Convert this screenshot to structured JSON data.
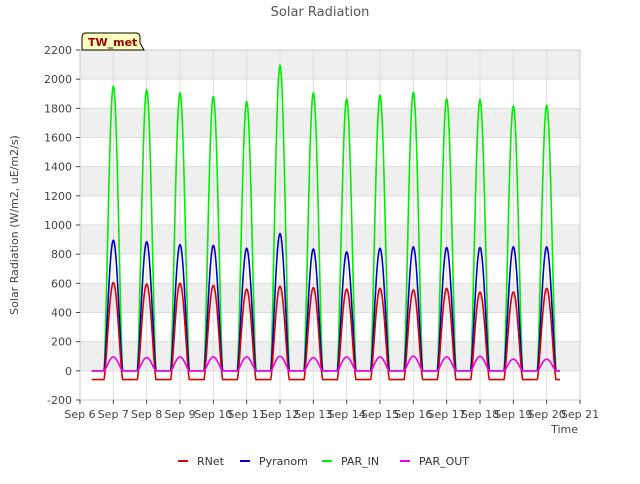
{
  "chart_data": {
    "type": "line",
    "title": "Solar Radiation",
    "xlabel": "Time",
    "ylabel": "Solar Radiation (W/m2, uE/m2/s)",
    "ylim": [
      -200,
      2200
    ],
    "yticks": [
      -200,
      0,
      200,
      400,
      600,
      800,
      1000,
      1200,
      1400,
      1600,
      1800,
      2000,
      2200
    ],
    "xlim": [
      6,
      21
    ],
    "xtick_values": [
      6,
      7,
      8,
      9,
      10,
      11,
      12,
      13,
      14,
      15,
      16,
      17,
      18,
      19,
      20,
      21
    ],
    "xtick_labels": [
      "Sep 6",
      "Sep 7",
      "Sep 8",
      "Sep 9",
      "Sep 10",
      "Sep 11",
      "Sep 12",
      "Sep 13",
      "Sep 14",
      "Sep 15",
      "Sep 16",
      "Sep 17",
      "Sep 18",
      "Sep 19",
      "Sep 20",
      "Sep 21"
    ],
    "grid": true,
    "legend_position": "bottom",
    "annotation": "TW_met",
    "days": [
      7,
      8,
      9,
      10,
      11,
      12,
      13,
      14,
      15,
      16,
      17,
      18,
      19,
      20
    ],
    "series": [
      {
        "name": "RNet",
        "color": "#dd0000",
        "night": -60,
        "peaks": [
          605,
          595,
          600,
          585,
          560,
          580,
          570,
          560,
          565,
          555,
          565,
          540,
          540,
          565
        ]
      },
      {
        "name": "Pyranom",
        "color": "#0000cc",
        "night": 0,
        "peaks": [
          895,
          885,
          865,
          860,
          840,
          940,
          835,
          815,
          840,
          850,
          845,
          845,
          850,
          850
        ]
      },
      {
        "name": "PAR_IN",
        "color": "#00ee00",
        "night": 0,
        "peaks": [
          1950,
          1925,
          1905,
          1880,
          1845,
          2095,
          1905,
          1865,
          1890,
          1910,
          1865,
          1860,
          1815,
          1820
        ]
      },
      {
        "name": "PAR_OUT",
        "color": "#ee00ee",
        "night": 0,
        "peaks": [
          95,
          90,
          95,
          95,
          95,
          100,
          90,
          95,
          95,
          100,
          95,
          100,
          80,
          80
        ]
      }
    ]
  }
}
